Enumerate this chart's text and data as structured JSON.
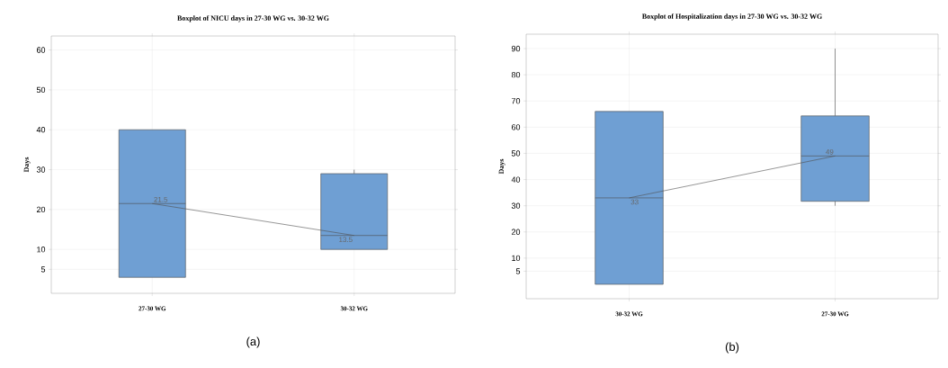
{
  "chart_data": [
    {
      "type": "box",
      "title": "Boxplot of NICU days in 27-30 WG vs. 30-32 WG",
      "ylabel": "Days",
      "categories": [
        "27-30 WG",
        "30-32 WG"
      ],
      "color": "#6f9fd3",
      "boxes": [
        {
          "low": 3,
          "q1": 3,
          "median": 21.5,
          "q3": 40,
          "high": 40
        },
        {
          "low": 10,
          "q1": 10,
          "median": 13.5,
          "q3": 29,
          "high": 30
        }
      ],
      "series": [
        {
          "type": "line",
          "color": "#505050",
          "values": [
            21.5,
            13.5
          ],
          "value_labels": [
            "21.5",
            "13.5"
          ]
        }
      ],
      "ylim": [
        -1,
        63.5
      ],
      "yticks": [
        5,
        10,
        20,
        30,
        40,
        50,
        60
      ],
      "grid": true,
      "annotations": [
        "(a)"
      ]
    },
    {
      "type": "box",
      "title": "Boxplot of Hospitalization days in 27-30 WG vs. 30-32 WG",
      "ylabel": "Days",
      "categories": [
        "30-32 WG",
        "27-30 WG"
      ],
      "color": "#6f9fd3",
      "boxes": [
        {
          "low": 0,
          "q1": 0,
          "median": 33,
          "q3": 66,
          "high": 66
        },
        {
          "low": 30,
          "q1": 31.7,
          "median": 49,
          "q3": 64.3,
          "high": 90
        }
      ],
      "series": [
        {
          "type": "line",
          "color": "#505050",
          "values": [
            33,
            49
          ],
          "value_labels": [
            "33",
            "49"
          ]
        }
      ],
      "ylim": [
        -5.5,
        95.5
      ],
      "yticks": [
        5,
        10,
        20,
        30,
        40,
        50,
        60,
        70,
        80,
        90
      ],
      "grid": true,
      "annotations": [
        "(b)"
      ]
    }
  ]
}
